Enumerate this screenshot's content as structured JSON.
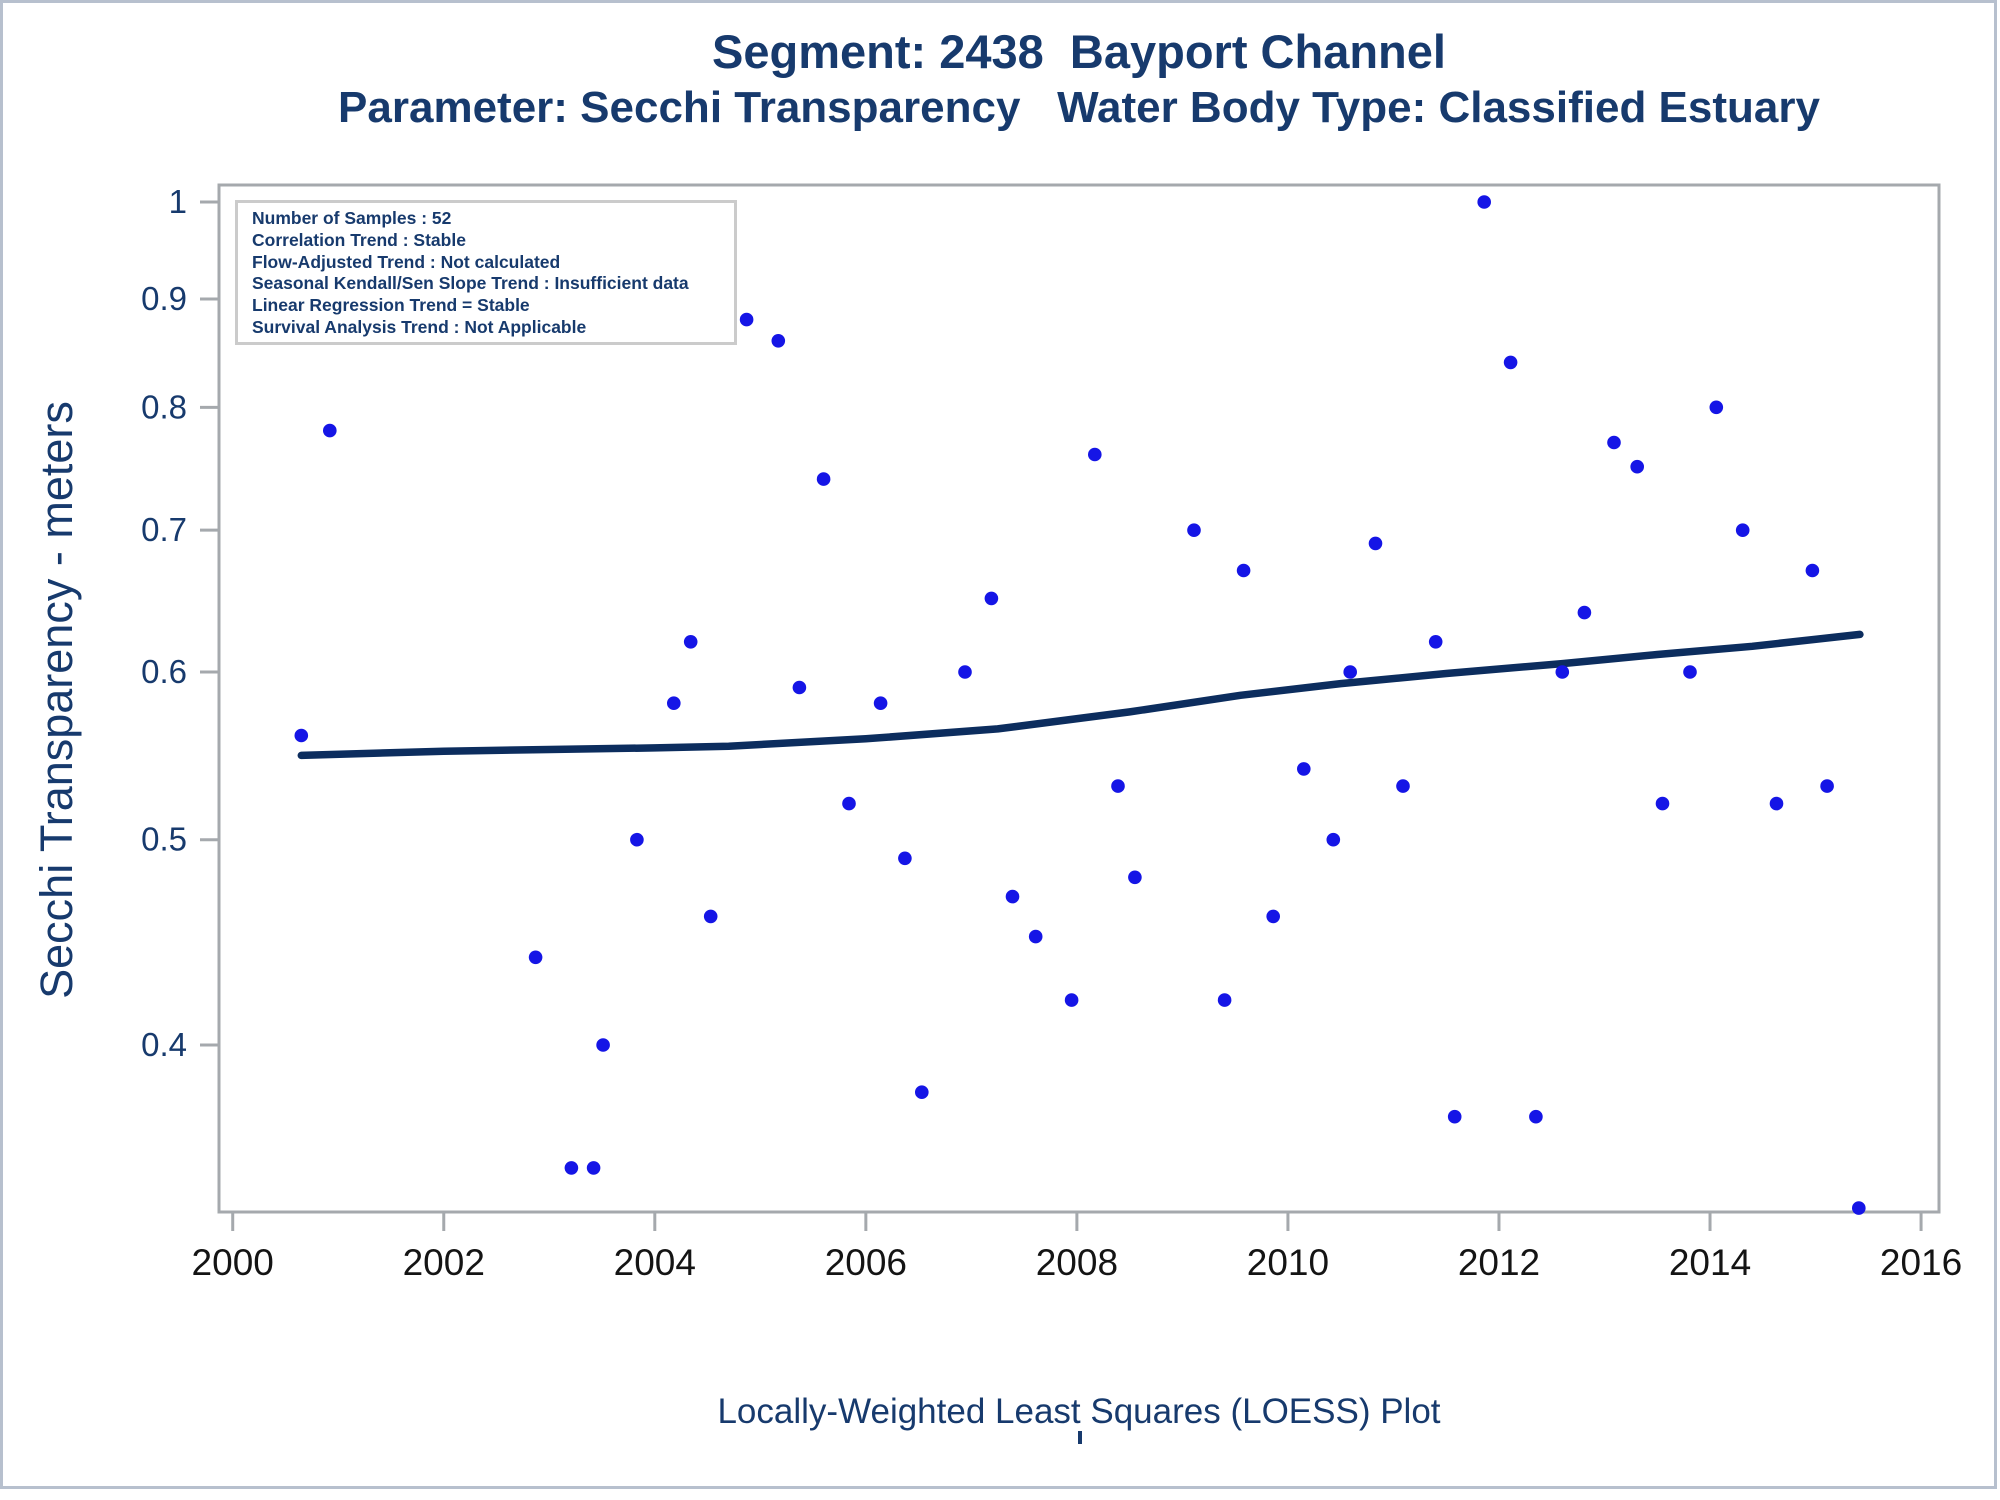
{
  "page": {
    "footnote": "Locally-Weighted Least Squares (LOESS) Plot"
  },
  "stats": {
    "lines": [
      "Number of Samples : 52",
      "Correlation Trend : Stable",
      "Flow-Adjusted Trend : Not calculated",
      "Seasonal Kendall/Sen Slope Trend : Insufficient data",
      "Linear Regression Trend = Stable",
      "Survival Analysis Trend : Not Applicable"
    ]
  },
  "colors": {
    "navy_text": "#173a6d",
    "loess_line": "#0c2d5e",
    "marker_blue": "#1515e6",
    "axis_gray": "#a5a9ad",
    "x_tick_label": "#141414",
    "stats_border": "#cbcbcb",
    "outer_border": "#b7c0ce"
  },
  "chart_data": {
    "type": "scatter",
    "title": "Segment: 2438  Bayport Channel",
    "subtitle": "Parameter: Secchi Transparency   Water Body Type: Classified Estuary",
    "xlabel": "",
    "ylabel": "Secchi Transparency - meters",
    "y_scale": "log",
    "grid": false,
    "legend_position": "none",
    "xlim": [
      1999.87,
      2016.17
    ],
    "ylim": [
      0.3336,
      1.0187
    ],
    "x_ticks": [
      "2000",
      "2002",
      "2004",
      "2006",
      "2008",
      "2010",
      "2012",
      "2014",
      "2016"
    ],
    "y_ticks": [
      "1",
      "0.9",
      "0.8",
      "0.7",
      "0.6",
      "0.5",
      "0.4"
    ],
    "points": [
      [
        2000.65,
        0.56
      ],
      [
        2000.92,
        0.78
      ],
      [
        2002.87,
        0.44
      ],
      [
        2003.21,
        0.35
      ],
      [
        2003.42,
        0.35
      ],
      [
        2003.51,
        0.4
      ],
      [
        2003.83,
        0.5
      ],
      [
        2004.18,
        0.58
      ],
      [
        2004.34,
        0.62
      ],
      [
        2004.53,
        0.46
      ],
      [
        2004.87,
        0.88
      ],
      [
        2005.17,
        0.86
      ],
      [
        2005.37,
        0.59
      ],
      [
        2005.6,
        0.74
      ],
      [
        2005.84,
        0.52
      ],
      [
        2006.14,
        0.58
      ],
      [
        2006.37,
        0.49
      ],
      [
        2006.53,
        0.38
      ],
      [
        2006.94,
        0.6
      ],
      [
        2007.19,
        0.65
      ],
      [
        2007.39,
        0.47
      ],
      [
        2007.61,
        0.45
      ],
      [
        2007.95,
        0.42
      ],
      [
        2008.17,
        0.76
      ],
      [
        2008.39,
        0.53
      ],
      [
        2008.55,
        0.48
      ],
      [
        2009.11,
        0.7
      ],
      [
        2009.4,
        0.42
      ],
      [
        2009.58,
        0.67
      ],
      [
        2009.86,
        0.46
      ],
      [
        2010.15,
        0.54
      ],
      [
        2010.43,
        0.5
      ],
      [
        2010.59,
        0.6
      ],
      [
        2010.83,
        0.69
      ],
      [
        2011.09,
        0.53
      ],
      [
        2011.4,
        0.62
      ],
      [
        2011.58,
        0.37
      ],
      [
        2011.86,
        1.0
      ],
      [
        2012.11,
        0.84
      ],
      [
        2012.35,
        0.37
      ],
      [
        2012.6,
        0.6
      ],
      [
        2012.81,
        0.64
      ],
      [
        2013.09,
        0.77
      ],
      [
        2013.31,
        0.75
      ],
      [
        2013.55,
        0.52
      ],
      [
        2013.81,
        0.6
      ],
      [
        2014.06,
        0.8
      ],
      [
        2014.31,
        0.7
      ],
      [
        2014.63,
        0.52
      ],
      [
        2014.97,
        0.67
      ],
      [
        2015.11,
        0.53
      ],
      [
        2015.41,
        0.335
      ]
    ],
    "loess_curve": [
      [
        2000.65,
        0.548
      ],
      [
        2002.0,
        0.5505
      ],
      [
        2003.0,
        0.5515
      ],
      [
        2004.0,
        0.5525
      ],
      [
        2004.7,
        0.5535
      ],
      [
        2006.0,
        0.558
      ],
      [
        2007.25,
        0.564
      ],
      [
        2008.5,
        0.5745
      ],
      [
        2009.55,
        0.585
      ],
      [
        2010.5,
        0.5925
      ],
      [
        2011.5,
        0.599
      ],
      [
        2012.6,
        0.6055
      ],
      [
        2013.5,
        0.6115
      ],
      [
        2014.4,
        0.617
      ],
      [
        2015.42,
        0.625
      ]
    ]
  }
}
